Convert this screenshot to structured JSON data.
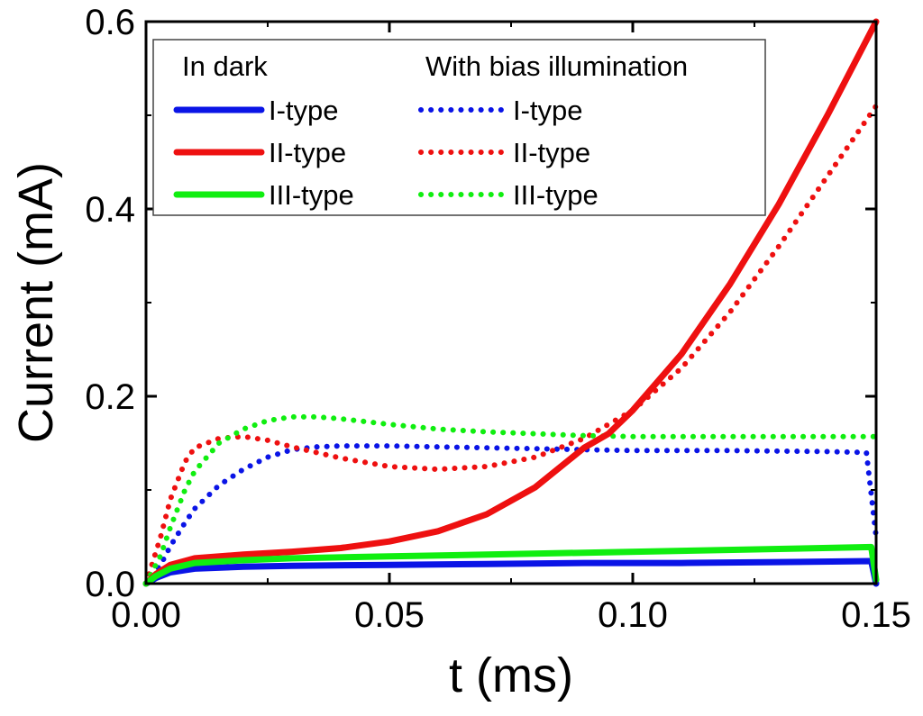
{
  "chart_data": {
    "type": "line",
    "title": "",
    "xlabel": "t (ms)",
    "ylabel": "Current (mA)",
    "xlim": [
      0,
      0.15
    ],
    "ylim": [
      0,
      0.6
    ],
    "xticks": [
      0.0,
      0.05,
      0.1,
      0.15
    ],
    "xtick_labels": [
      "0.00",
      "0.05",
      "0.10",
      "0.15"
    ],
    "yticks": [
      0.0,
      0.2,
      0.4,
      0.6
    ],
    "ytick_labels": [
      "0.0",
      "0.2",
      "0.4",
      "0.6"
    ],
    "grid": false,
    "legend": {
      "placement": "top-left",
      "group_headers": [
        "In dark",
        "With bias illumination"
      ]
    },
    "series": [
      {
        "name": "I-type",
        "group": "In dark",
        "style": "solid",
        "color": "#0a14e6",
        "x": [
          0,
          0.002,
          0.005,
          0.01,
          0.02,
          0.03,
          0.05,
          0.07,
          0.09,
          0.11,
          0.13,
          0.149,
          0.15
        ],
        "y": [
          0,
          0.006,
          0.012,
          0.016,
          0.018,
          0.019,
          0.02,
          0.021,
          0.022,
          0.022,
          0.023,
          0.024,
          0
        ]
      },
      {
        "name": "II-type",
        "group": "In dark",
        "style": "solid",
        "color": "#ee1010",
        "x": [
          0,
          0.002,
          0.005,
          0.01,
          0.02,
          0.03,
          0.04,
          0.05,
          0.06,
          0.07,
          0.08,
          0.09,
          0.095,
          0.1,
          0.11,
          0.12,
          0.13,
          0.14,
          0.15
        ],
        "y": [
          0,
          0.01,
          0.02,
          0.027,
          0.031,
          0.034,
          0.038,
          0.045,
          0.056,
          0.074,
          0.103,
          0.145,
          0.16,
          0.185,
          0.245,
          0.32,
          0.405,
          0.5,
          0.6
        ]
      },
      {
        "name": "III-type",
        "group": "In dark",
        "style": "solid",
        "color": "#10ee10",
        "x": [
          0,
          0.002,
          0.005,
          0.01,
          0.02,
          0.03,
          0.05,
          0.07,
          0.09,
          0.11,
          0.13,
          0.149,
          0.15
        ],
        "y": [
          0,
          0.008,
          0.016,
          0.022,
          0.025,
          0.027,
          0.029,
          0.031,
          0.033,
          0.035,
          0.037,
          0.039,
          0.004
        ]
      },
      {
        "name": "I-type",
        "group": "With bias illumination",
        "style": "dotted",
        "color": "#0a14e6",
        "x": [
          0,
          0.003,
          0.005,
          0.008,
          0.01,
          0.015,
          0.02,
          0.025,
          0.03,
          0.035,
          0.04,
          0.05,
          0.06,
          0.07,
          0.08,
          0.09,
          0.1,
          0.12,
          0.14,
          0.148,
          0.15
        ],
        "y": [
          0,
          0.02,
          0.04,
          0.065,
          0.08,
          0.105,
          0.122,
          0.135,
          0.143,
          0.146,
          0.147,
          0.147,
          0.146,
          0.145,
          0.144,
          0.143,
          0.142,
          0.142,
          0.141,
          0.14,
          0.05
        ]
      },
      {
        "name": "II-type",
        "group": "With bias illumination",
        "style": "dotted",
        "color": "#ee1010",
        "x": [
          0,
          0.003,
          0.005,
          0.008,
          0.01,
          0.015,
          0.02,
          0.025,
          0.03,
          0.035,
          0.04,
          0.05,
          0.06,
          0.07,
          0.08,
          0.09,
          0.1,
          0.11,
          0.12,
          0.13,
          0.14,
          0.15
        ],
        "y": [
          0,
          0.05,
          0.09,
          0.13,
          0.145,
          0.155,
          0.157,
          0.153,
          0.146,
          0.14,
          0.134,
          0.125,
          0.122,
          0.125,
          0.135,
          0.155,
          0.185,
          0.23,
          0.29,
          0.36,
          0.435,
          0.51
        ]
      },
      {
        "name": "III-type",
        "group": "With bias illumination",
        "style": "dotted",
        "color": "#10ee10",
        "x": [
          0,
          0.003,
          0.005,
          0.008,
          0.01,
          0.015,
          0.02,
          0.025,
          0.03,
          0.035,
          0.04,
          0.05,
          0.06,
          0.07,
          0.08,
          0.09,
          0.1,
          0.12,
          0.14,
          0.15
        ],
        "y": [
          0,
          0.03,
          0.06,
          0.1,
          0.12,
          0.15,
          0.165,
          0.174,
          0.178,
          0.178,
          0.176,
          0.17,
          0.165,
          0.162,
          0.16,
          0.158,
          0.157,
          0.157,
          0.157,
          0.157
        ]
      }
    ]
  }
}
